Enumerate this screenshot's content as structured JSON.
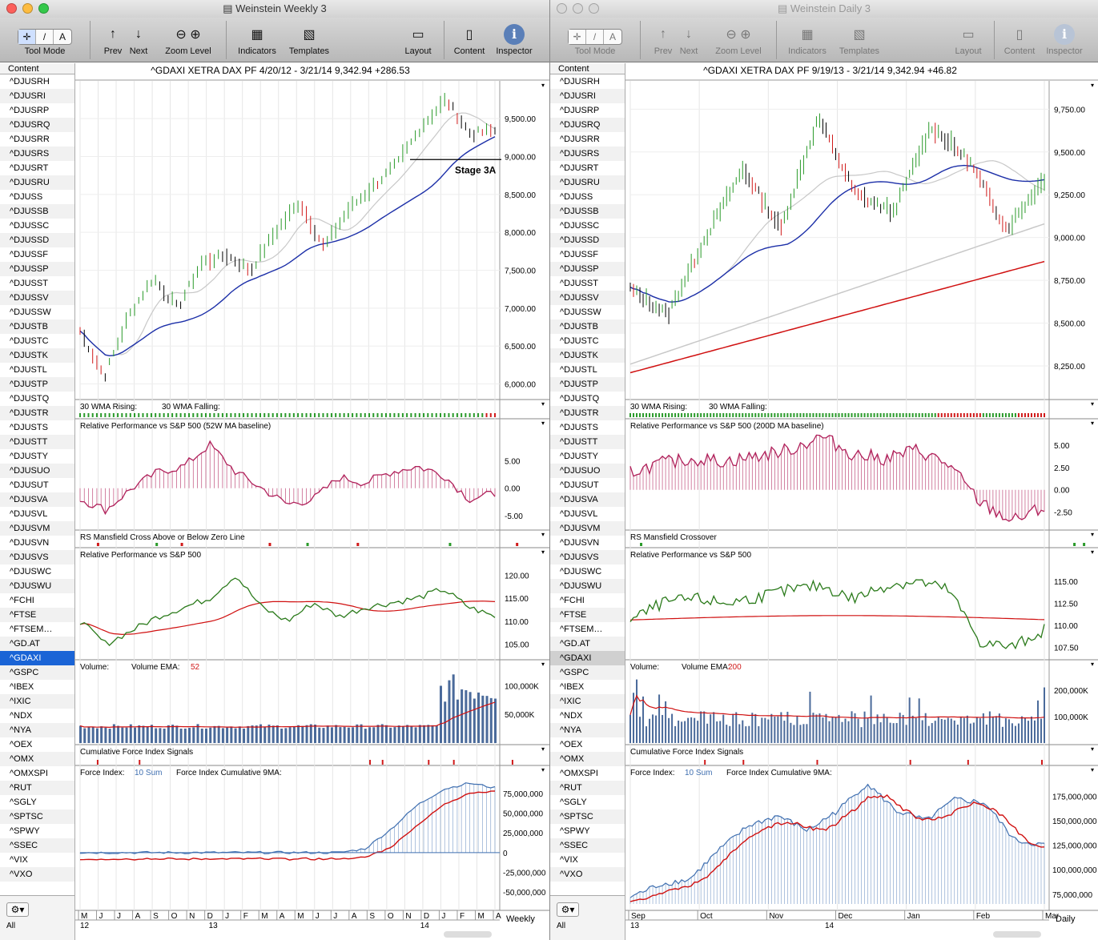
{
  "left_window": {
    "title": "Weinstein Weekly 3",
    "chart_header": {
      "symbol": "^GDAXI",
      "name": "XETRA DAX PF",
      "range": "4/20/12 - 3/21/14",
      "price": "9,342.94",
      "change": "+286.53"
    },
    "annotation": "Stage 3A",
    "period_label": "Weekly",
    "panels": {
      "wma": "30 WMA Rising:",
      "wma_falling": "30 WMA Falling:",
      "rp_ma": "Relative Performance vs S&P 500 (52W MA baseline)",
      "rs_cross": "RS Mansfield Cross Above or Below Zero Line",
      "rp": "Relative Performance vs S&P 500",
      "volume": "Volume:",
      "volume_ema": "Volume EMA:",
      "volume_ema_val": "52",
      "cfi": "Cumulative Force Index Signals",
      "fi": "Force Index:",
      "fi_sum": "10 Sum",
      "fi_cum": "Force Index Cumulative 9MA:"
    }
  },
  "right_window": {
    "title": "Weinstein Daily 3",
    "chart_header": {
      "symbol": "^GDAXI",
      "name": "XETRA DAX PF",
      "range": "9/19/13 - 3/21/14",
      "price": "9,342.94",
      "change": "+46.82"
    },
    "period_label": "Daily",
    "panels": {
      "wma": "30 WMA Rising:",
      "wma_falling": "30 WMA Falling:",
      "rp_ma": "Relative Performance vs S&P 500 (200D MA baseline)",
      "rs_cross": "RS Mansfield Crossover",
      "rp": "Relative Performance vs S&P 500",
      "volume": "Volume:",
      "volume_ema": "Volume EMA:",
      "volume_ema_val": "200",
      "cfi": "Cumulative Force Index Signals",
      "fi": "Force Index:",
      "fi_sum": "10 Sum",
      "fi_cum": "Force Index Cumulative 9MA:"
    }
  },
  "toolbar": {
    "tool_mode": "Tool Mode",
    "prev": "Prev",
    "next": "Next",
    "zoom_level": "Zoom Level",
    "indicators": "Indicators",
    "templates": "Templates",
    "layout": "Layout",
    "content": "Content",
    "inspector": "Inspector"
  },
  "sidebar": {
    "header": "Content",
    "footer_all": "All",
    "selected": "^GDAXI",
    "items": [
      "^DJUSRH",
      "^DJUSRI",
      "^DJUSRP",
      "^DJUSRQ",
      "^DJUSRR",
      "^DJUSRS",
      "^DJUSRT",
      "^DJUSRU",
      "^DJUSS",
      "^DJUSSB",
      "^DJUSSC",
      "^DJUSSD",
      "^DJUSSF",
      "^DJUSSP",
      "^DJUSST",
      "^DJUSSV",
      "^DJUSSW",
      "^DJUSTB",
      "^DJUSTC",
      "^DJUSTK",
      "^DJUSTL",
      "^DJUSTP",
      "^DJUSTQ",
      "^DJUSTR",
      "^DJUSTS",
      "^DJUSTT",
      "^DJUSTY",
      "^DJUSUO",
      "^DJUSUT",
      "^DJUSVA",
      "^DJUSVL",
      "^DJUSVM",
      "^DJUSVN",
      "^DJUSVS",
      "^DJUSWC",
      "^DJUSWU",
      "^FCHI",
      "^FTSE",
      "^FTSEM…",
      "^GD.AT",
      "^GDAXI",
      "^GSPC",
      "^IBEX",
      "^IXIC",
      "^NDX",
      "^NYA",
      "^OEX",
      "^OMX",
      "^OMXSPI",
      "^RUT",
      "^SGLY",
      "^SPTSC",
      "^SPWY",
      "^SSEC",
      "^VIX",
      "^VXO"
    ]
  },
  "colors": {
    "ma_blue": "#1c2fa8",
    "ma_gray": "#c8c8c8",
    "ma_red": "#d01010",
    "rp_magenta": "#b0205a",
    "rp_green": "#2a7a1a",
    "vol_blue": "#4a6a9a",
    "fi_blue": "#3f6fb0",
    "up_green": "#2a9a2a",
    "down_red": "#d01a1a",
    "sel_blue": "#1a64d6"
  },
  "chart_data": [
    {
      "type": "line",
      "title": "^GDAXI XETRA DAX PF (Weekly)",
      "y_ticks": [
        "9,500.00",
        "9,000.00",
        "8,500.00",
        "8,000.00",
        "7,500.00",
        "7,000.00",
        "6,500.00",
        "6,000.00"
      ],
      "y_ticks_rp_ma": [
        "5.00",
        "0.00",
        "-5.00"
      ],
      "y_ticks_rp": [
        "120.00",
        "115.00",
        "110.00",
        "105.00"
      ],
      "y_ticks_vol": [
        "100,000K",
        "50,000K"
      ],
      "y_ticks_fi": [
        "75,000,000",
        "50,000,000",
        "25,000,000",
        "0",
        "-25,000,000",
        "-50,000,000"
      ],
      "x_months": [
        "M",
        "J",
        "J",
        "A",
        "S",
        "O",
        "N",
        "D",
        "J",
        "F",
        "M",
        "A",
        "M",
        "J",
        "J",
        "A",
        "S",
        "O",
        "N",
        "D",
        "J",
        "F",
        "M",
        "A"
      ],
      "x_years": [
        "12",
        "13",
        "14"
      ],
      "price_keypoints": [
        6700,
        6100,
        6900,
        7400,
        7000,
        7600,
        7700,
        7500,
        8000,
        8400,
        7800,
        8300,
        8600,
        8900,
        9400,
        9750,
        9300,
        9342
      ]
    },
    {
      "type": "line",
      "title": "^GDAXI XETRA DAX PF (Daily)",
      "y_ticks": [
        "9,750.00",
        "9,500.00",
        "9,250.00",
        "9,000.00",
        "8,750.00",
        "8,500.00",
        "8,250.00"
      ],
      "y_ticks_rp_ma": [
        "5.00",
        "2.50",
        "0.00",
        "-2.50"
      ],
      "y_ticks_rp": [
        "115.00",
        "112.50",
        "110.00",
        "107.50"
      ],
      "y_ticks_vol": [
        "200,000K",
        "100,000K"
      ],
      "y_ticks_fi": [
        "175,000,000",
        "150,000,000",
        "125,000,000",
        "100,000,000",
        "75,000,000"
      ],
      "x_months": [
        "Sep",
        "Oct",
        "Nov",
        "Dec",
        "Jan",
        "Feb",
        "Mar"
      ],
      "x_years": [
        "13",
        "14"
      ],
      "price_keypoints": [
        8700,
        8550,
        9000,
        9400,
        9050,
        9700,
        9250,
        9150,
        9650,
        9450,
        9050,
        9342
      ]
    }
  ]
}
